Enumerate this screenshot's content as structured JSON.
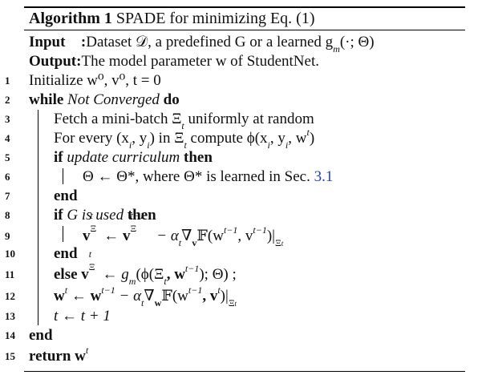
{
  "algorithm": {
    "title_label": "Algorithm 1",
    "title_text": "SPADE for minimizing Eq. (1)",
    "input_label": "Input",
    "input_colon": ":",
    "input_text": "Dataset 𝒟, a predefined G or a learned g",
    "input_sub": "m",
    "input_tail": "(·; Θ)",
    "output_label": "Output",
    "output_colon": ":",
    "output_text": "The model parameter w of StudentNet."
  },
  "lines": [
    {
      "num": "1",
      "text": "Initialize w⁰, v⁰, t = 0"
    },
    {
      "num": "2",
      "kw": "while",
      "cond": "Not Converged",
      "kw2": "do"
    },
    {
      "num": "3",
      "text": "Fetch a mini-batch Ξ",
      "sub": "t",
      "tail": " uniformly at random"
    },
    {
      "num": "4",
      "text": "For every (x",
      "mid": "i",
      "tail": ", y",
      "mid2": "i",
      "tail2": ") in Ξ",
      "mid3": "t",
      "tail3": " compute ϕ(x",
      "mid4": "i",
      "tail4": ", y",
      "mid5": "i",
      "tail5": ", w",
      "sup": "t",
      "tail6": ")"
    },
    {
      "num": "5",
      "kw": "if",
      "cond": "update curriculum",
      "kw2": "then"
    },
    {
      "num": "6",
      "text": "Θ ← Θ*, where Θ* is learned in Sec. ",
      "link": "3.1"
    },
    {
      "num": "7",
      "kw": "end"
    },
    {
      "num": "8",
      "kw": "if",
      "cond": "G is used",
      "kw2": "then"
    },
    {
      "num": "9",
      "text": "v",
      "text_tail": " ← v",
      "text_rest": " − α",
      "text_rest2": "∇",
      "text_rest3": "𝔽(w",
      "text_rest4": ", v",
      "text_rest5": ")|",
      "sup_t": "t",
      "sub_xi": "Ξ",
      "sup_t1": "t−1",
      "sub_t": "t",
      "sub_v": "v"
    },
    {
      "num": "10",
      "kw": "end"
    },
    {
      "num": "11",
      "kw": "else",
      "text": "v",
      "text_tail": " ← g",
      "text_rest": "(ϕ(Ξ",
      "text_rest2": ", w",
      "text_rest3": "); Θ) ;",
      "sup_t": "t",
      "sub_xi": "Ξ",
      "sub_m": "m",
      "sub_t": "t",
      "sup_t1": "t−1"
    },
    {
      "num": "12",
      "text": "w",
      "text_tail": " ← w",
      "text_rest": " − α",
      "text_rest2": "∇",
      "text_rest3": "𝔽(w",
      "text_rest4": ", v",
      "text_rest5": ")|",
      "sup_t": "t",
      "sup_t1": "t−1",
      "sub_t": "t",
      "sub_w": "w",
      "sub_xi": "Ξ"
    },
    {
      "num": "13",
      "text": "t ← t + 1"
    },
    {
      "num": "14",
      "kw": "end"
    },
    {
      "num": "15",
      "kw": "return",
      "text": "w",
      "sup": "t"
    }
  ],
  "colors": {
    "link": "#1f3fbf",
    "text": "#111111"
  }
}
